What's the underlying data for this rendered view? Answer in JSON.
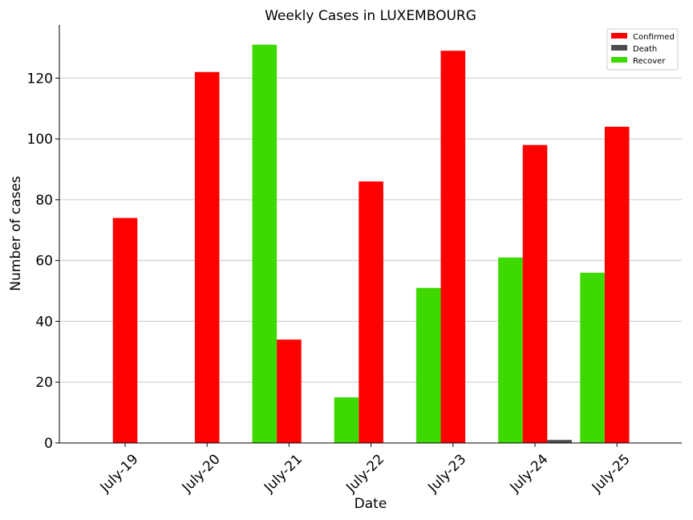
{
  "chart_data": {
    "type": "bar",
    "title": "Weekly Cases in LUXEMBOURG",
    "xlabel": "Date",
    "ylabel": "Number of cases",
    "categories": [
      "July-19",
      "July-20",
      "July-21",
      "July-22",
      "July-23",
      "July-24",
      "July-25"
    ],
    "series": [
      {
        "name": "Confirmed",
        "color": "#ff0000",
        "values": [
          74,
          122,
          34,
          86,
          129,
          98,
          104
        ]
      },
      {
        "name": "Death",
        "color": "#4d4d4d",
        "values": [
          0,
          0,
          0,
          0,
          0,
          1,
          0
        ]
      },
      {
        "name": "Recover",
        "color": "#3dd900",
        "values": [
          0,
          0,
          131,
          15,
          51,
          61,
          56
        ]
      }
    ],
    "ylim": [
      0,
      137.5
    ],
    "yticks": [
      0,
      20,
      40,
      60,
      80,
      100,
      120
    ],
    "grid": "horizontal",
    "legend_position": "top-right"
  }
}
